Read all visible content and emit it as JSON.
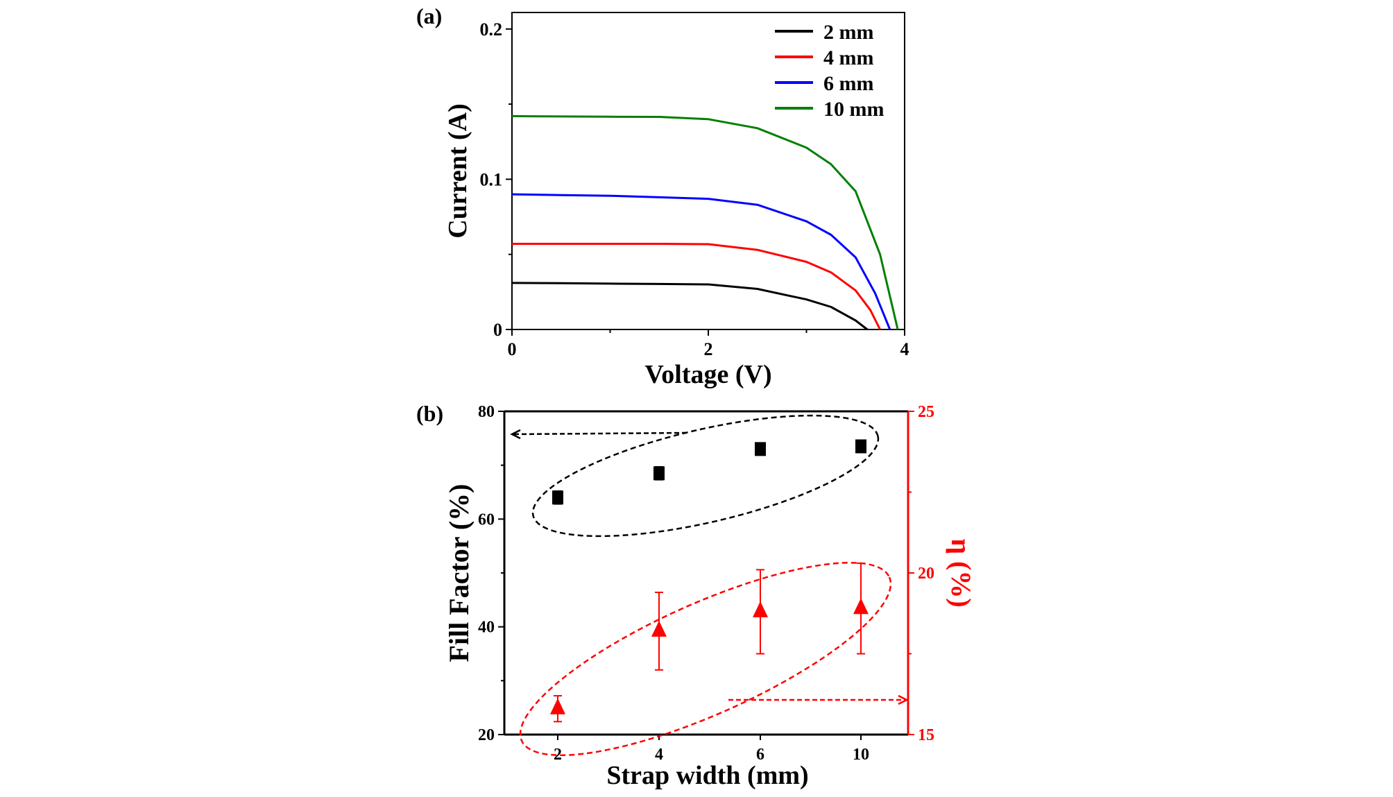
{
  "chart_data": [
    {
      "panel_label": "(a)",
      "type": "line",
      "xlabel": "Voltage (V)",
      "ylabel": "Current (A)",
      "xlim": [
        0,
        4
      ],
      "ylim": [
        0,
        0.211
      ],
      "xticks": [
        "0",
        "2",
        "4"
      ],
      "xtick_values": [
        0,
        2,
        4
      ],
      "yticks": [
        "0",
        "0.1",
        "0.2"
      ],
      "ytick_values": [
        0,
        0.1,
        0.2
      ],
      "legend_position": "top-right",
      "series": [
        {
          "name": "2 mm",
          "color": "#000000",
          "x": [
            0,
            0.5,
            1,
            1.5,
            2,
            2.5,
            3,
            3.25,
            3.5,
            3.62
          ],
          "y": [
            0.031,
            0.0308,
            0.0305,
            0.0303,
            0.03,
            0.027,
            0.02,
            0.015,
            0.006,
            0
          ]
        },
        {
          "name": "4 mm",
          "color": "#ff0000",
          "x": [
            0,
            0.5,
            1,
            1.5,
            2,
            2.5,
            3,
            3.25,
            3.5,
            3.65,
            3.75
          ],
          "y": [
            0.057,
            0.057,
            0.057,
            0.057,
            0.0568,
            0.053,
            0.045,
            0.038,
            0.026,
            0.013,
            0
          ]
        },
        {
          "name": "6 mm",
          "color": "#0000ff",
          "x": [
            0,
            0.5,
            1,
            1.5,
            2,
            2.5,
            3,
            3.25,
            3.5,
            3.7,
            3.85
          ],
          "y": [
            0.09,
            0.0895,
            0.089,
            0.088,
            0.087,
            0.083,
            0.072,
            0.063,
            0.048,
            0.024,
            0
          ]
        },
        {
          "name": "10 mm",
          "color": "#008000",
          "x": [
            0,
            0.5,
            1,
            1.5,
            2,
            2.5,
            3,
            3.25,
            3.5,
            3.75,
            3.93
          ],
          "y": [
            0.142,
            0.1418,
            0.1416,
            0.1415,
            0.14,
            0.134,
            0.121,
            0.11,
            0.092,
            0.05,
            0
          ]
        }
      ]
    },
    {
      "panel_label": "(b)",
      "type": "scatter",
      "xlabel": "Strap width (mm)",
      "ylabel": "Fill Factor (%)",
      "ylabel_right": "η (%)",
      "categories": [
        "2",
        "4",
        "6",
        "10"
      ],
      "ylim": [
        20,
        80
      ],
      "ylim_right": [
        15,
        25
      ],
      "yticks": [
        "20",
        "40",
        "60",
        "80"
      ],
      "ytick_values": [
        20,
        40,
        60,
        80
      ],
      "yticks_right": [
        "15",
        "20",
        "25"
      ],
      "ytick_values_right": [
        15,
        20,
        25
      ],
      "right_axis_color": "#ff0000",
      "series": [
        {
          "name": "Fill Factor",
          "axis": "left",
          "marker": "square",
          "color": "#000000",
          "values": [
            64.0,
            68.5,
            73.0,
            73.5
          ],
          "errors": [
            1.2,
            1.2,
            1.0,
            0.9
          ]
        },
        {
          "name": "η",
          "axis": "right",
          "marker": "triangle",
          "color": "#ff0000",
          "values": [
            15.8,
            18.2,
            18.8,
            18.9
          ],
          "errors": [
            0.4,
            1.2,
            1.3,
            1.4
          ]
        }
      ]
    }
  ]
}
